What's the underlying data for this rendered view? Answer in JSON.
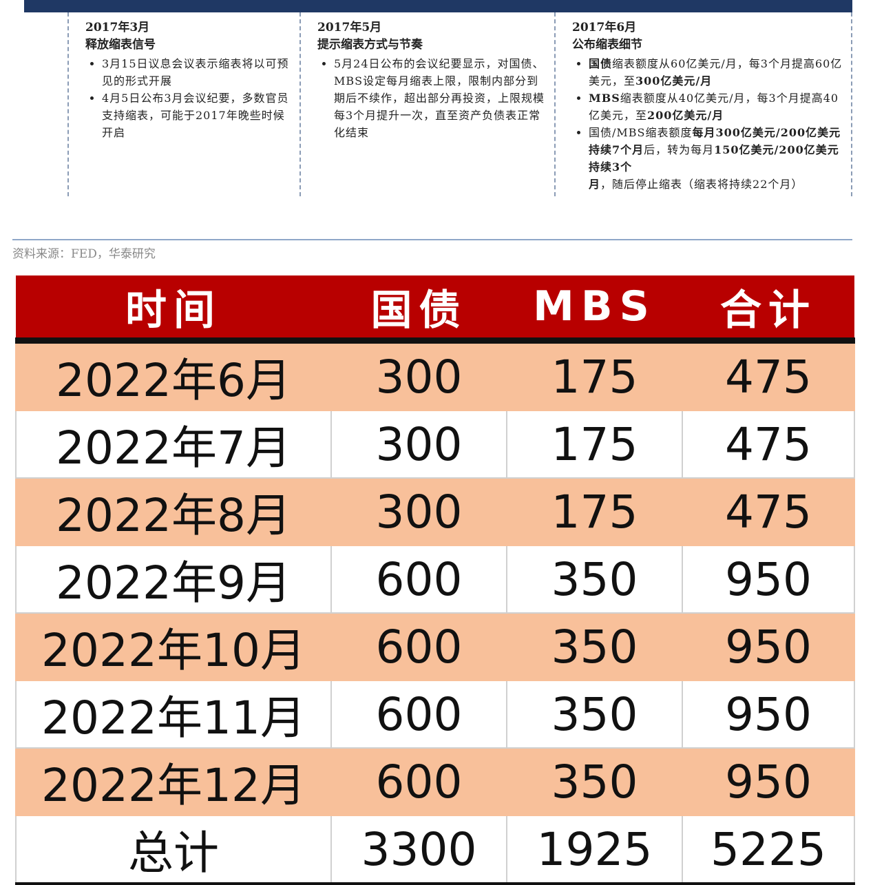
{
  "timeline": [
    {
      "date": "2017年3月",
      "title": "释放缩表信号",
      "bullets": [
        [
          {
            "text": "3月15日议息会议表示缩表将以可预见的形式开展",
            "bold": false
          }
        ],
        [
          {
            "text": "4月5日公布3月会议纪要，多数官员支持缩表，可能于2017年晚些时候开启",
            "bold": false
          }
        ]
      ]
    },
    {
      "date": "2017年5月",
      "title": "提示缩表方式与节奏",
      "bullets": [
        [
          {
            "text": "5月24日公布的会议纪要显示，对国债、MBS设定每月缩表上限，限制内部分到期后不续作，超出部分再投资，上限规模每3个月提升一次，直至资产负债表正常化结束",
            "bold": false
          }
        ]
      ]
    },
    {
      "date": "2017年6月",
      "title": "公布缩表细节",
      "bullets": [
        [
          {
            "text": "国债",
            "bold": true
          },
          {
            "text": "缩表额度从60亿美元/月，每3个月提高60亿美元，至",
            "bold": false
          },
          {
            "text": "300亿美元/月",
            "bold": true
          }
        ],
        [
          {
            "text": "MBS",
            "bold": true
          },
          {
            "text": "缩表额度从40亿美元/月，每3个月提高40亿美元，至",
            "bold": false
          },
          {
            "text": "200亿美元/月",
            "bold": true
          }
        ],
        [
          {
            "text": "国债/MBS缩表额度",
            "bold": false
          },
          {
            "text": "每月300亿美元/200亿美元持续7个月",
            "bold": true
          },
          {
            "text": "后，转为每月",
            "bold": false
          },
          {
            "text": "150亿美元/200亿美元持续3个月",
            "bold": true
          },
          {
            "text": "，随后停止缩表（缩表将持续22个月）",
            "bold": false
          }
        ]
      ]
    }
  ],
  "source": "资料来源：FED，华泰研究",
  "table": {
    "header": [
      "时间",
      "国债",
      "MBS",
      "合计"
    ],
    "rows": [
      [
        "2022年6月",
        300,
        175,
        475
      ],
      [
        "2022年7月",
        300,
        175,
        475
      ],
      [
        "2022年8月",
        300,
        175,
        475
      ],
      [
        "2022年9月",
        600,
        350,
        950
      ],
      [
        "2022年10月",
        600,
        350,
        950
      ],
      [
        "2022年11月",
        600,
        350,
        950
      ],
      [
        "2022年12月",
        600,
        350,
        950
      ],
      [
        "总计",
        3300,
        1925,
        5225
      ]
    ]
  }
}
